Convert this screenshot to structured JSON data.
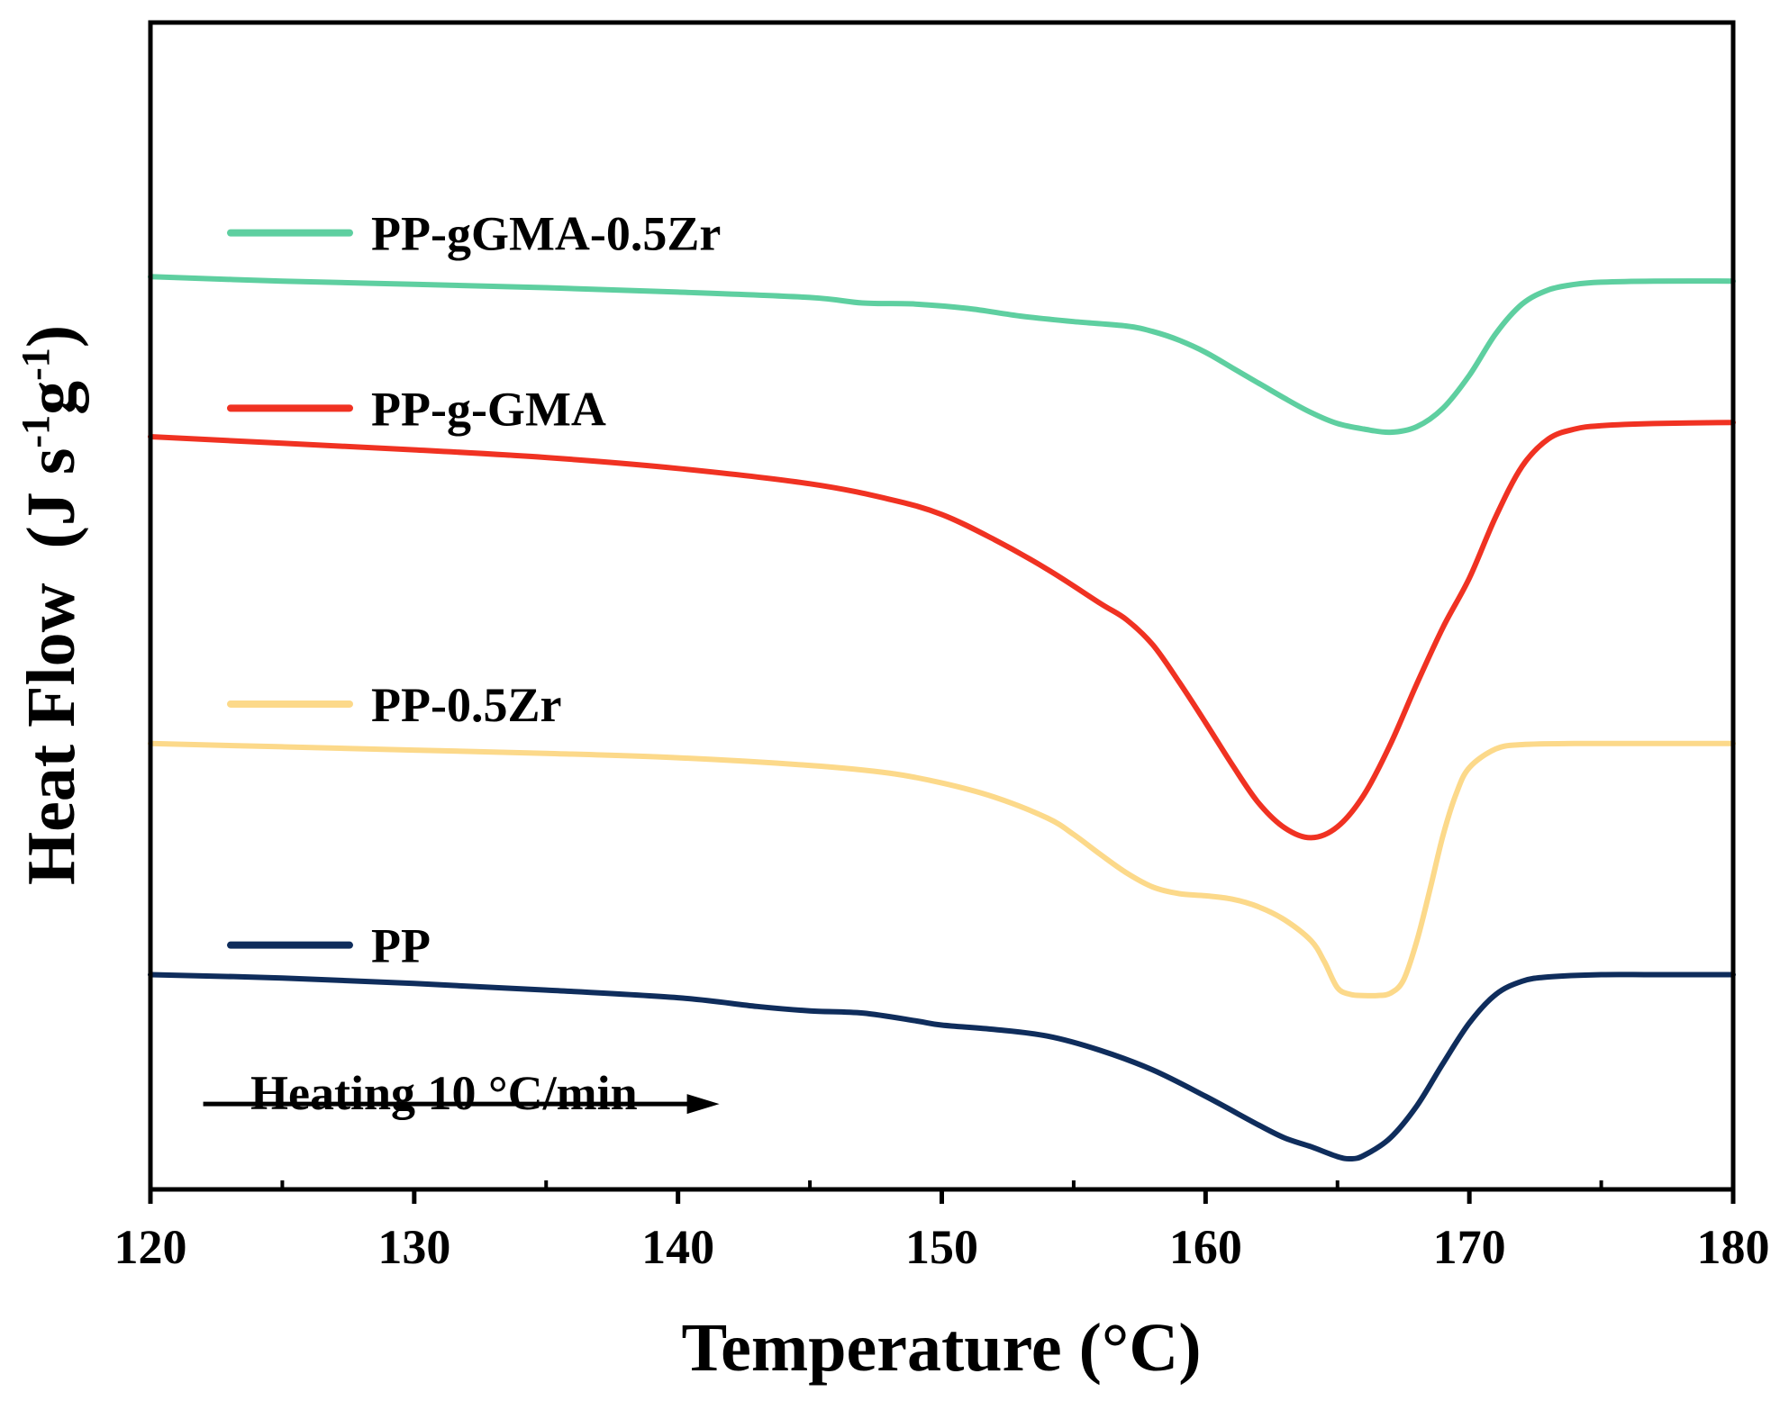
{
  "chart_data": {
    "type": "line",
    "title": "",
    "xlabel": "Temperature (°C)",
    "ylabel": {
      "main": "Heat Flow  (J s",
      "sup1": "-1",
      "mid": "g",
      "sup2": "-1",
      "end": ")"
    },
    "xlim": [
      120,
      180
    ],
    "ylim": [
      0,
      100
    ],
    "xticks": [
      120,
      130,
      140,
      150,
      160,
      170,
      180
    ],
    "x_minor_ticks": [
      125,
      135,
      145,
      155,
      165,
      175
    ],
    "y_ticks_shown": false,
    "annotation": {
      "text": "Heating 10 °C/min",
      "arrow_from_x": 122,
      "arrow_to_x": 141.5,
      "arrow_y": 5
    },
    "series": [
      {
        "name": "PP-gGMA-0.5Zr",
        "color": "#5ecfa0",
        "legend_y": 84.5,
        "points": [
          [
            120,
            80.5
          ],
          [
            125,
            80.1
          ],
          [
            130,
            79.8
          ],
          [
            135,
            79.5
          ],
          [
            140,
            79.1
          ],
          [
            145,
            78.6
          ],
          [
            147,
            78.1
          ],
          [
            149,
            78.0
          ],
          [
            151,
            77.6
          ],
          [
            153,
            76.9
          ],
          [
            155,
            76.4
          ],
          [
            157,
            76.0
          ],
          [
            158,
            75.5
          ],
          [
            159,
            74.7
          ],
          [
            160,
            73.6
          ],
          [
            161,
            72.2
          ],
          [
            162,
            70.8
          ],
          [
            163,
            69.4
          ],
          [
            164,
            68.1
          ],
          [
            165,
            67.1
          ],
          [
            166,
            66.6
          ],
          [
            167,
            66.3
          ],
          [
            168,
            66.8
          ],
          [
            169,
            68.5
          ],
          [
            170,
            71.5
          ],
          [
            171,
            75.3
          ],
          [
            172,
            78.0
          ],
          [
            173,
            79.3
          ],
          [
            174,
            79.8
          ],
          [
            175,
            80.0
          ],
          [
            177,
            80.1
          ],
          [
            180,
            80.1
          ]
        ]
      },
      {
        "name": "PP-g-GMA",
        "color": "#f03222",
        "legend_y": 68.5,
        "points": [
          [
            120,
            65.9
          ],
          [
            125,
            65.3
          ],
          [
            130,
            64.7
          ],
          [
            135,
            64.0
          ],
          [
            140,
            63.0
          ],
          [
            145,
            61.6
          ],
          [
            148,
            60.2
          ],
          [
            150,
            58.8
          ],
          [
            152,
            56.5
          ],
          [
            154,
            53.8
          ],
          [
            156,
            50.7
          ],
          [
            157,
            49.2
          ],
          [
            158,
            46.9
          ],
          [
            159,
            43.5
          ],
          [
            160,
            39.8
          ],
          [
            161,
            36.0
          ],
          [
            162,
            32.5
          ],
          [
            163,
            30.2
          ],
          [
            164,
            29.3
          ],
          [
            165,
            30.3
          ],
          [
            166,
            33.2
          ],
          [
            167,
            37.8
          ],
          [
            168,
            43.3
          ],
          [
            169,
            48.5
          ],
          [
            170,
            53.0
          ],
          [
            171,
            58.6
          ],
          [
            172,
            63.2
          ],
          [
            173,
            65.7
          ],
          [
            174,
            66.6
          ],
          [
            175,
            66.9
          ],
          [
            177,
            67.1
          ],
          [
            180,
            67.2
          ]
        ]
      },
      {
        "name": "PP-0.5Zr",
        "color": "#fcd98a",
        "legend_y": 41.5,
        "points": [
          [
            120,
            37.9
          ],
          [
            125,
            37.6
          ],
          [
            130,
            37.3
          ],
          [
            135,
            37.0
          ],
          [
            140,
            36.6
          ],
          [
            145,
            35.9
          ],
          [
            148,
            35.2
          ],
          [
            150,
            34.3
          ],
          [
            152,
            33.0
          ],
          [
            154,
            31.1
          ],
          [
            155,
            29.6
          ],
          [
            156,
            27.8
          ],
          [
            157,
            26.1
          ],
          [
            158,
            24.8
          ],
          [
            159,
            24.2
          ],
          [
            160,
            24.0
          ],
          [
            161,
            23.7
          ],
          [
            162,
            23.0
          ],
          [
            163,
            21.8
          ],
          [
            164,
            19.9
          ],
          [
            164.5,
            18.0
          ],
          [
            165,
            15.6
          ],
          [
            165.5,
            15.0
          ],
          [
            166,
            14.9
          ],
          [
            166.5,
            14.9
          ],
          [
            167,
            15.1
          ],
          [
            167.5,
            16.3
          ],
          [
            168,
            19.8
          ],
          [
            168.5,
            24.5
          ],
          [
            169,
            29.5
          ],
          [
            169.5,
            33.3
          ],
          [
            170,
            35.7
          ],
          [
            171,
            37.4
          ],
          [
            172,
            37.8
          ],
          [
            174,
            37.9
          ],
          [
            177,
            37.9
          ],
          [
            180,
            37.9
          ]
        ]
      },
      {
        "name": "PP",
        "color": "#0f2d5c",
        "legend_y": 19.5,
        "points": [
          [
            120,
            16.8
          ],
          [
            125,
            16.5
          ],
          [
            130,
            16.0
          ],
          [
            135,
            15.4
          ],
          [
            140,
            14.7
          ],
          [
            143,
            13.9
          ],
          [
            145,
            13.5
          ],
          [
            147,
            13.3
          ],
          [
            149,
            12.6
          ],
          [
            150,
            12.2
          ],
          [
            152,
            11.8
          ],
          [
            154,
            11.2
          ],
          [
            156,
            9.9
          ],
          [
            158,
            8.1
          ],
          [
            160,
            5.7
          ],
          [
            162,
            3.1
          ],
          [
            163,
            1.9
          ],
          [
            164,
            1.1
          ],
          [
            165,
            0.2
          ],
          [
            165.5,
            0.0
          ],
          [
            166,
            0.3
          ],
          [
            167,
            1.9
          ],
          [
            168,
            4.8
          ],
          [
            169,
            8.7
          ],
          [
            170,
            12.4
          ],
          [
            171,
            15.0
          ],
          [
            172,
            16.2
          ],
          [
            173,
            16.6
          ],
          [
            175,
            16.8
          ],
          [
            177,
            16.8
          ],
          [
            180,
            16.8
          ]
        ]
      }
    ]
  }
}
